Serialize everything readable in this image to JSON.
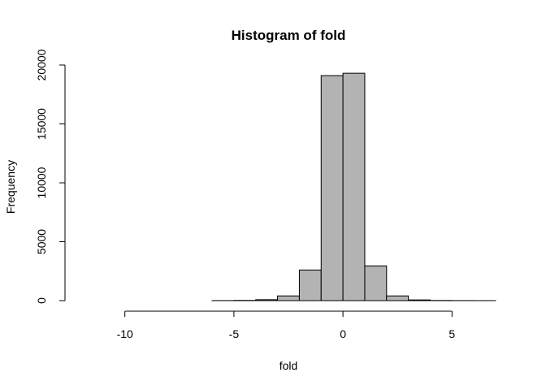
{
  "chart_data": {
    "type": "bar",
    "title": "Histogram of fold",
    "xlabel": "fold",
    "ylabel": "Frequency",
    "x_ticks": [
      -10,
      -5,
      0,
      5
    ],
    "y_ticks": [
      0,
      5000,
      10000,
      15000,
      20000
    ],
    "xlim": [
      -12,
      7
    ],
    "ylim": [
      0,
      20000
    ],
    "bins": [
      {
        "start": -12,
        "end": -11,
        "count": 0
      },
      {
        "start": -11,
        "end": -10,
        "count": 0
      },
      {
        "start": -10,
        "end": -9,
        "count": 0
      },
      {
        "start": -9,
        "end": -8,
        "count": 0
      },
      {
        "start": -8,
        "end": -7,
        "count": 0
      },
      {
        "start": -7,
        "end": -6,
        "count": 0
      },
      {
        "start": -6,
        "end": -5,
        "count": 5
      },
      {
        "start": -5,
        "end": -4,
        "count": 20
      },
      {
        "start": -4,
        "end": -3,
        "count": 80
      },
      {
        "start": -3,
        "end": -2,
        "count": 400
      },
      {
        "start": -2,
        "end": -1,
        "count": 2600
      },
      {
        "start": -1,
        "end": 0,
        "count": 19100
      },
      {
        "start": 0,
        "end": 1,
        "count": 19300
      },
      {
        "start": 1,
        "end": 2,
        "count": 2950
      },
      {
        "start": 2,
        "end": 3,
        "count": 400
      },
      {
        "start": 3,
        "end": 4,
        "count": 60
      },
      {
        "start": 4,
        "end": 5,
        "count": 15
      },
      {
        "start": 5,
        "end": 6,
        "count": 5
      },
      {
        "start": 6,
        "end": 7,
        "count": 2
      }
    ],
    "grid": false,
    "legend": "none"
  }
}
